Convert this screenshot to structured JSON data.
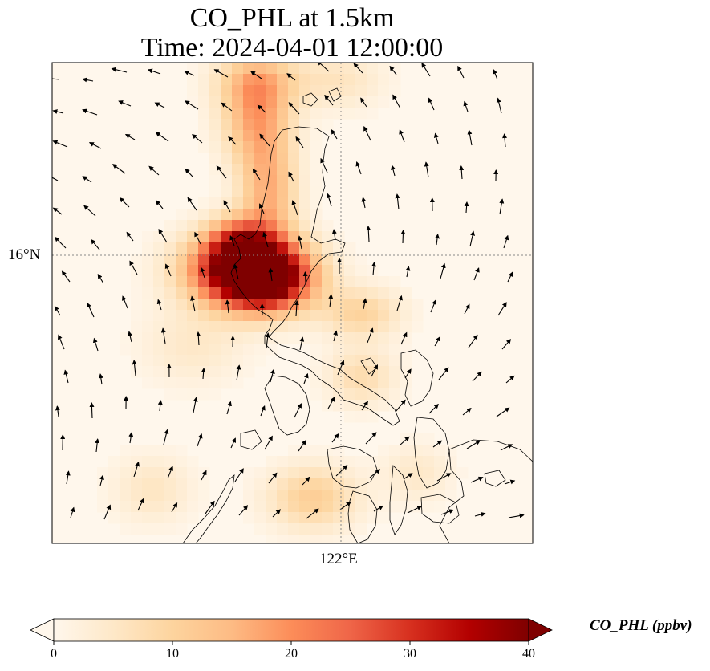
{
  "title": {
    "line1": "CO_PHL at 1.5km",
    "line2": "Time: 2024-04-01 12:00:00"
  },
  "map": {
    "lat_label": "16°N",
    "lon_label": "122°E",
    "colormap": "OrRd",
    "gridlines": "dotted",
    "variable": "CO_PHL",
    "height": "1.5km"
  },
  "colorbar": {
    "label": "CO_PHL (ppbv)",
    "ticks": [
      "0",
      "10",
      "20",
      "30",
      "40"
    ],
    "min": 0,
    "max": 40,
    "extend": "both",
    "colors": [
      "#fff7ec",
      "#fee8c8",
      "#fdd49e",
      "#fdbb84",
      "#fc8d59",
      "#ef6548",
      "#d7301f",
      "#b30000",
      "#7f0000"
    ]
  }
}
